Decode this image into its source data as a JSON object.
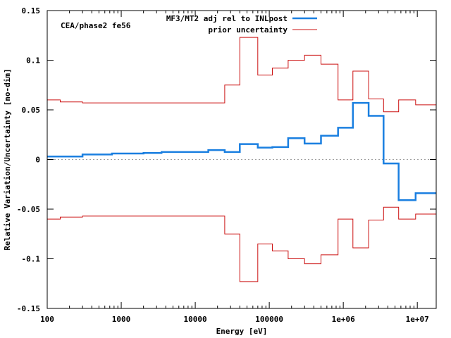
{
  "chart_data": {
    "type": "line",
    "title": "",
    "annotation": "CEA/phase2 fe56",
    "xlabel": "Energy [eV]",
    "ylabel": "Relative Variation/Uncertainty [no-dim]",
    "x_scale": "log",
    "xlim": [
      100,
      18000000
    ],
    "ylim": [
      -0.15,
      0.15
    ],
    "x_tick_values": [
      100,
      1000,
      10000,
      100000,
      1000000,
      10000000
    ],
    "x_tick_labels": [
      "100",
      "1000",
      "10000",
      "100000",
      "1e+06",
      "1e+07"
    ],
    "y_tick_values": [
      -0.15,
      -0.1,
      -0.05,
      0,
      0.05,
      0.1,
      0.15
    ],
    "y_tick_labels": [
      "-0.15",
      "-0.1",
      "-0.05",
      "0",
      "0.05",
      "0.1",
      "0.15"
    ],
    "grid": false,
    "zero_line": true,
    "legend_position": "top-right",
    "series": [
      {
        "name": "MF3/MT2 adj rel to INLpost",
        "color": "#1a7fe0",
        "style": "step",
        "mirror": false,
        "edges": [
          100,
          300,
          750,
          2000,
          3500,
          15000,
          25000,
          40000,
          70000,
          110000,
          180000,
          300000,
          500000,
          850000,
          1350000,
          2200000,
          3500000,
          5600000,
          9500000,
          18000000
        ],
        "values": [
          0.003,
          0.005,
          0.006,
          0.0065,
          0.0075,
          0.0095,
          0.0075,
          0.0155,
          0.012,
          0.0125,
          0.0215,
          0.016,
          0.024,
          0.032,
          0.057,
          0.044,
          -0.004,
          -0.041,
          -0.034
        ]
      },
      {
        "name": "prior uncertainty",
        "color": "#cc1111",
        "style": "step",
        "mirror": true,
        "edges": [
          100,
          150,
          300,
          25000,
          40000,
          70000,
          110000,
          180000,
          300000,
          500000,
          850000,
          1350000,
          2200000,
          3500000,
          5600000,
          9500000,
          18000000
        ],
        "values": [
          0.06,
          0.058,
          0.057,
          0.075,
          0.123,
          0.085,
          0.092,
          0.1,
          0.105,
          0.096,
          0.06,
          0.089,
          0.061,
          0.048,
          0.06,
          0.055
        ]
      }
    ]
  }
}
